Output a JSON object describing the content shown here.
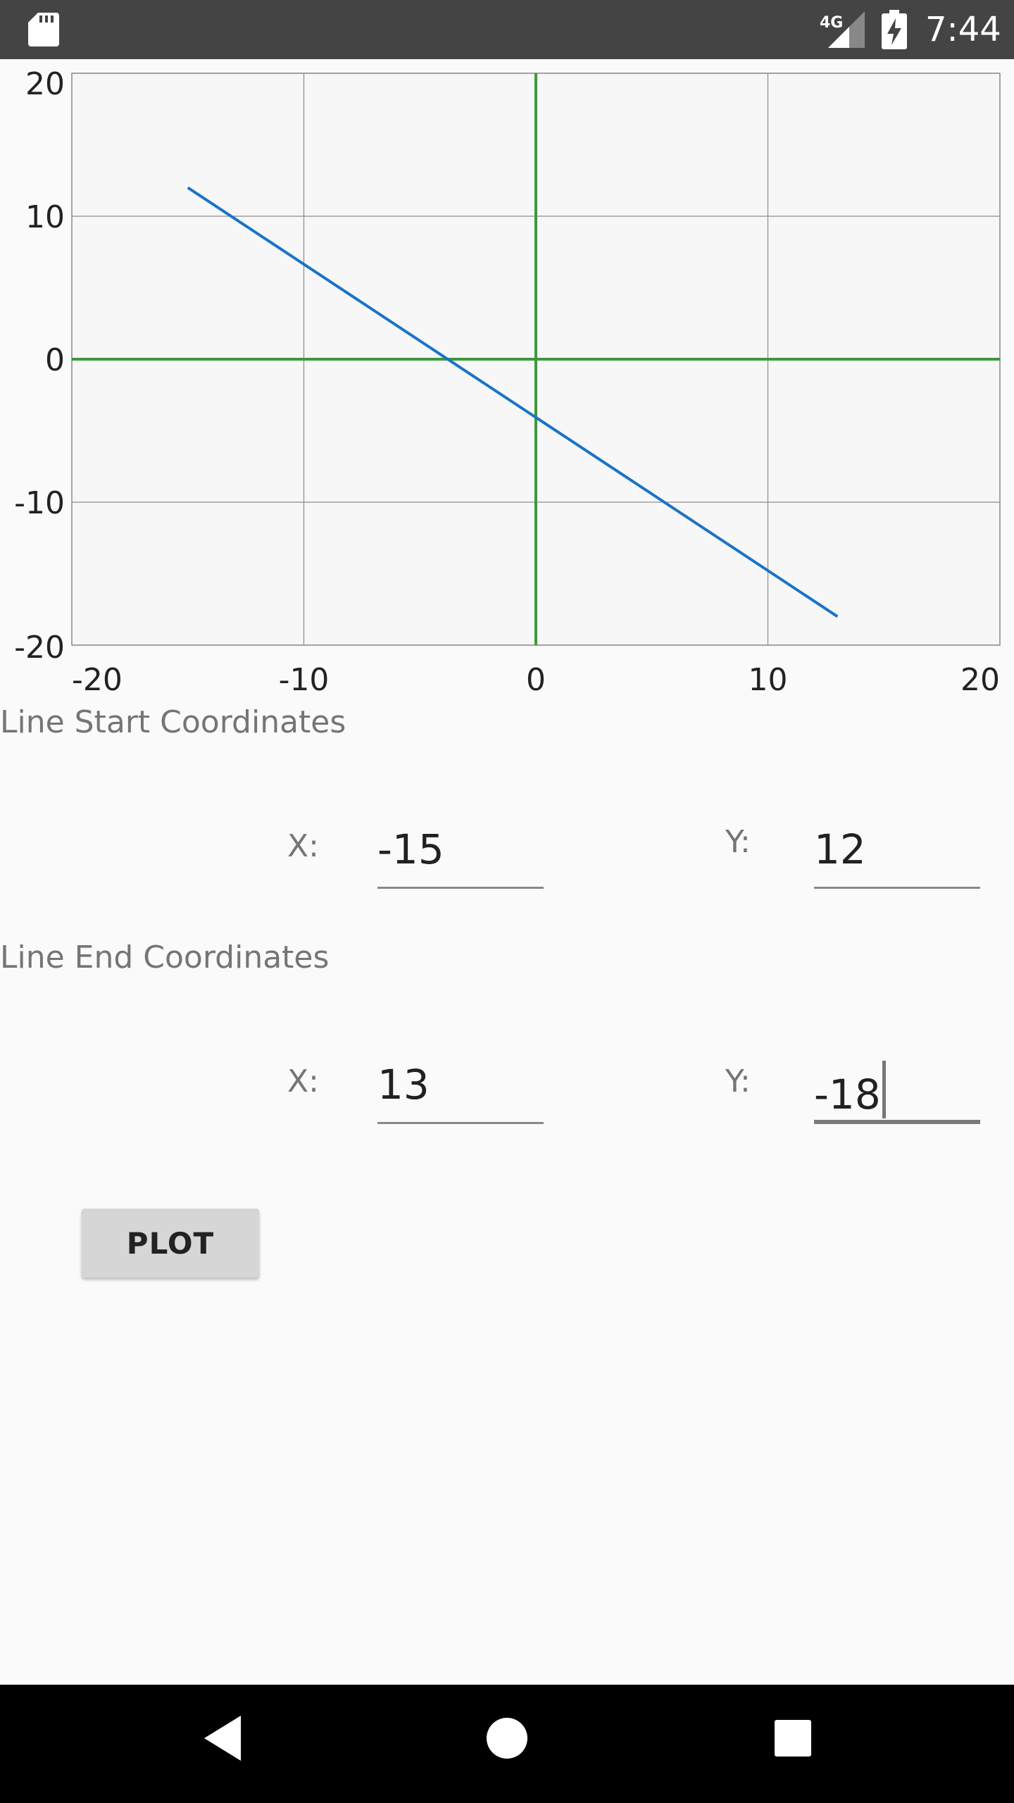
{
  "status_bar": {
    "network": "4G",
    "time": "7:44",
    "icons": [
      "sd-card-icon",
      "signal-icon",
      "battery-charging-icon"
    ]
  },
  "chart_data": {
    "type": "line",
    "xlim": [
      -20,
      20
    ],
    "ylim": [
      -20,
      20
    ],
    "x_ticks": [
      -20,
      -10,
      0,
      10,
      20
    ],
    "y_ticks": [
      20,
      10,
      0,
      -10,
      -20
    ],
    "grid": true,
    "series": [
      {
        "points": [
          [
            -15,
            12
          ],
          [
            13,
            -18
          ]
        ],
        "color": "#1a73c8"
      }
    ],
    "axis_color": "#3a9a3a"
  },
  "form": {
    "start_label": "Line Start Coordinates",
    "end_label": "Line End Coordinates",
    "x_label": "X:",
    "y_label": "Y:",
    "start_x": "-15",
    "start_y": "12",
    "end_x": "13",
    "end_y": "-18"
  },
  "plot_button": {
    "label": "PLOT"
  },
  "nav_bar": {
    "icons": [
      "back-icon",
      "home-icon",
      "recents-icon"
    ]
  }
}
